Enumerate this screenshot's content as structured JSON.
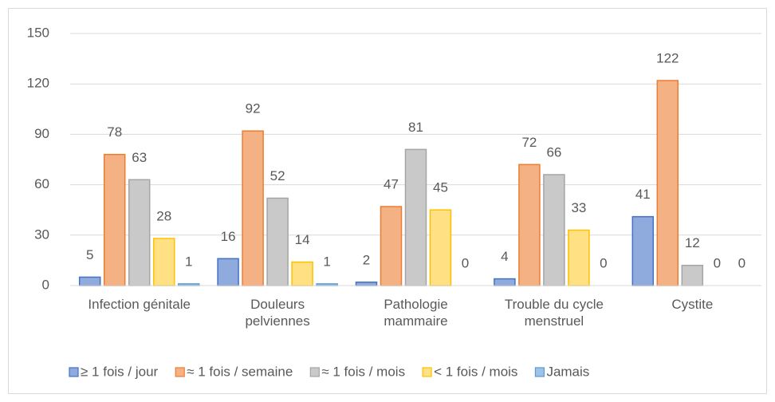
{
  "chart_data": {
    "type": "bar",
    "categories": [
      "Infection génitale",
      "Douleurs\npelviennes",
      "Pathologie\nmammaire",
      "Trouble du cycle\nmenstruel",
      "Cystite"
    ],
    "series": [
      {
        "name": "≥ 1 fois / jour",
        "color": "#8faadc",
        "edgecolor": "#4472c4",
        "values": [
          5,
          16,
          2,
          4,
          41
        ]
      },
      {
        "name": "≈ 1 fois / semaine",
        "color": "#f4b183",
        "edgecolor": "#ed7d31",
        "values": [
          78,
          92,
          47,
          72,
          122
        ]
      },
      {
        "name": "≈ 1 fois / mois",
        "color": "#c9c9c9",
        "edgecolor": "#a5a5a5",
        "values": [
          63,
          52,
          81,
          66,
          12
        ]
      },
      {
        "name": "< 1 fois / mois",
        "color": "#ffe083",
        "edgecolor": "#ffc000",
        "values": [
          28,
          14,
          45,
          33,
          0
        ]
      },
      {
        "name": "Jamais",
        "color": "#9dc3e6",
        "edgecolor": "#5b9bd5",
        "values": [
          1,
          1,
          0,
          0,
          0
        ]
      }
    ],
    "ylim": [
      0,
      150
    ],
    "yticks": [
      0,
      30,
      60,
      90,
      120,
      150
    ],
    "grid": true,
    "legend": "bottom"
  }
}
